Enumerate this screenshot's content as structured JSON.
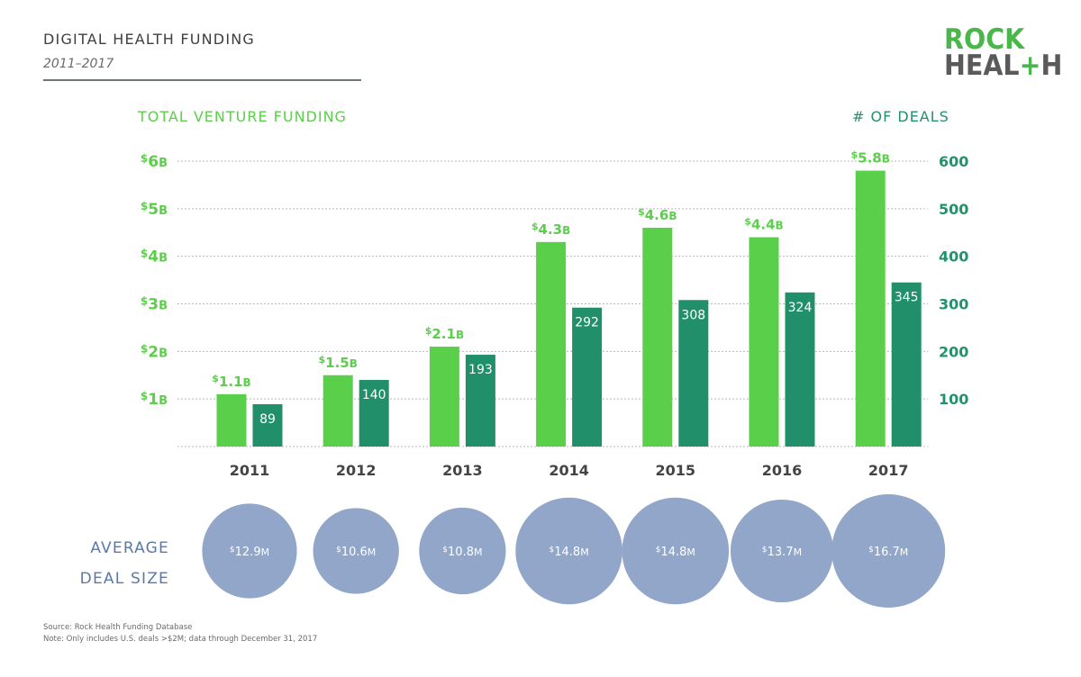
{
  "header": {
    "title": "DIGITAL HEALTH FUNDING",
    "subtitle": "2011–2017"
  },
  "logo": {
    "line1": "ROCK",
    "line2_prefix": "HEAL",
    "line2_plus": "+",
    "line2_suffix": "H"
  },
  "colors": {
    "funding_bar": "#5ad04a",
    "deals_bar": "#21906a",
    "bubble": "#91a6c8",
    "left_axis_text": "#5ccf4a",
    "right_axis_text": "#23916a",
    "bubble_label_text": "#5c78a8",
    "year_text": "#444444",
    "grid": "#b8b8b8"
  },
  "bubble_section": {
    "label_line1": "AVERAGE",
    "label_line2": "DEAL SIZE"
  },
  "footer": {
    "source": "Source: Rock Health Funding Database",
    "note": "Note: Only includes U.S. deals >$2M; data through December 31, 2017"
  },
  "chart_data": {
    "type": "bar",
    "title": "DIGITAL HEALTH FUNDING",
    "subtitle": "2011–2017",
    "categories": [
      "2011",
      "2012",
      "2013",
      "2014",
      "2015",
      "2016",
      "2017"
    ],
    "left_axis": {
      "label": "TOTAL VENTURE FUNDING",
      "unit": "B",
      "ticks": [
        1,
        2,
        3,
        4,
        5,
        6
      ],
      "tick_labels": [
        "$1B",
        "$2B",
        "$3B",
        "$4B",
        "$5B",
        "$6B"
      ],
      "range": [
        0,
        6
      ]
    },
    "right_axis": {
      "label": "# OF DEALS",
      "ticks": [
        100,
        200,
        300,
        400,
        500,
        600
      ],
      "tick_labels": [
        "100",
        "200",
        "300",
        "400",
        "500",
        "600"
      ],
      "range": [
        0,
        600
      ]
    },
    "grid": true,
    "series": [
      {
        "name": "Total Venture Funding ($B)",
        "axis": "left",
        "values": [
          1.1,
          1.5,
          2.1,
          4.3,
          4.6,
          4.4,
          5.8
        ],
        "labels": [
          "1.1",
          "1.5",
          "2.1",
          "4.3",
          "4.6",
          "4.4",
          "5.8"
        ],
        "label_prefix": "$",
        "label_suffix": "B"
      },
      {
        "name": "# of Deals",
        "axis": "right",
        "values": [
          89,
          140,
          193,
          292,
          308,
          324,
          345
        ],
        "labels": [
          "89",
          "140",
          "193",
          "292",
          "308",
          "324",
          "345"
        ]
      }
    ],
    "average_deal_size": {
      "name": "Average Deal Size ($M)",
      "type": "bubble",
      "values": [
        12.9,
        10.6,
        10.8,
        14.8,
        14.8,
        13.7,
        16.7
      ],
      "labels": [
        "12.9",
        "10.6",
        "10.8",
        "14.8",
        "14.8",
        "13.7",
        "16.7"
      ],
      "label_prefix": "$",
      "label_suffix": "M"
    }
  }
}
